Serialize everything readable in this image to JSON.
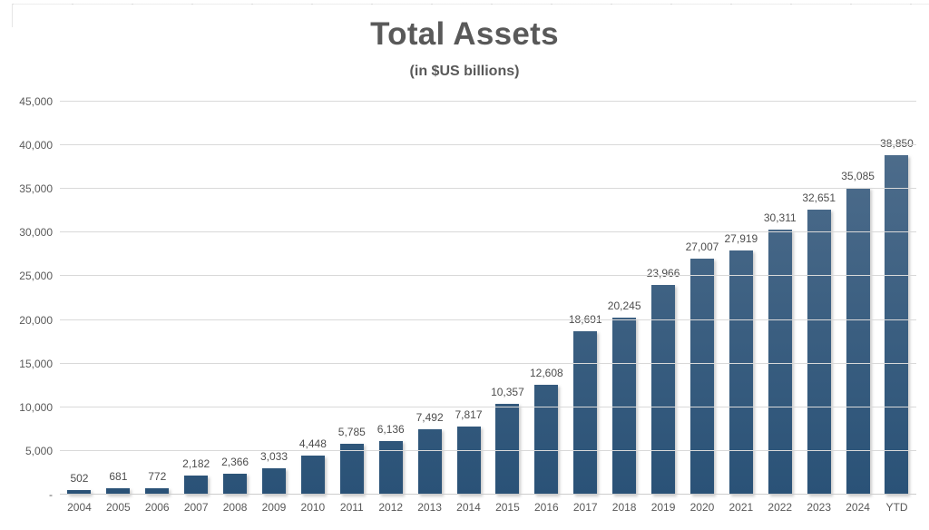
{
  "chart_data": {
    "type": "bar",
    "title": "Total Assets",
    "subtitle": "(in $US billions)",
    "categories": [
      "2004",
      "2005",
      "2006",
      "2007",
      "2008",
      "2009",
      "2010",
      "2011",
      "2012",
      "2013",
      "2014",
      "2015",
      "2016",
      "2017",
      "2018",
      "2019",
      "2020",
      "2021",
      "2022",
      "2023",
      "2024",
      "YTD"
    ],
    "values": [
      502,
      681,
      772,
      2182,
      2366,
      3033,
      4448,
      5785,
      6136,
      7492,
      7817,
      10357,
      12608,
      18691,
      20245,
      23966,
      27007,
      27919,
      30311,
      32651,
      35085,
      38850
    ],
    "value_labels": [
      "502",
      "681",
      "772",
      "2,182",
      "2,366",
      "3,033",
      "4,448",
      "5,785",
      "6,136",
      "7,492",
      "7,817",
      "10,357",
      "12,608",
      "18,691",
      "20,245",
      "23,966",
      "27,007",
      "27,919",
      "30,311",
      "32,651",
      "35,085",
      "38,850"
    ],
    "ylim": [
      0,
      45000
    ],
    "ytick_interval": 5000,
    "ytick_labels": [
      "-",
      "5,000",
      "10,000",
      "15,000",
      "20,000",
      "25,000",
      "30,000",
      "35,000",
      "40,000",
      "45,000"
    ],
    "grid": true,
    "legend": "none",
    "colors": {
      "bar_gradient_top": "#52708e",
      "bar_gradient_bottom": "#2a5277",
      "gridline": "#d9d9d9",
      "title_text": "#595959",
      "axis_text": "#595959",
      "data_label_text": "#4d4d4d"
    }
  }
}
